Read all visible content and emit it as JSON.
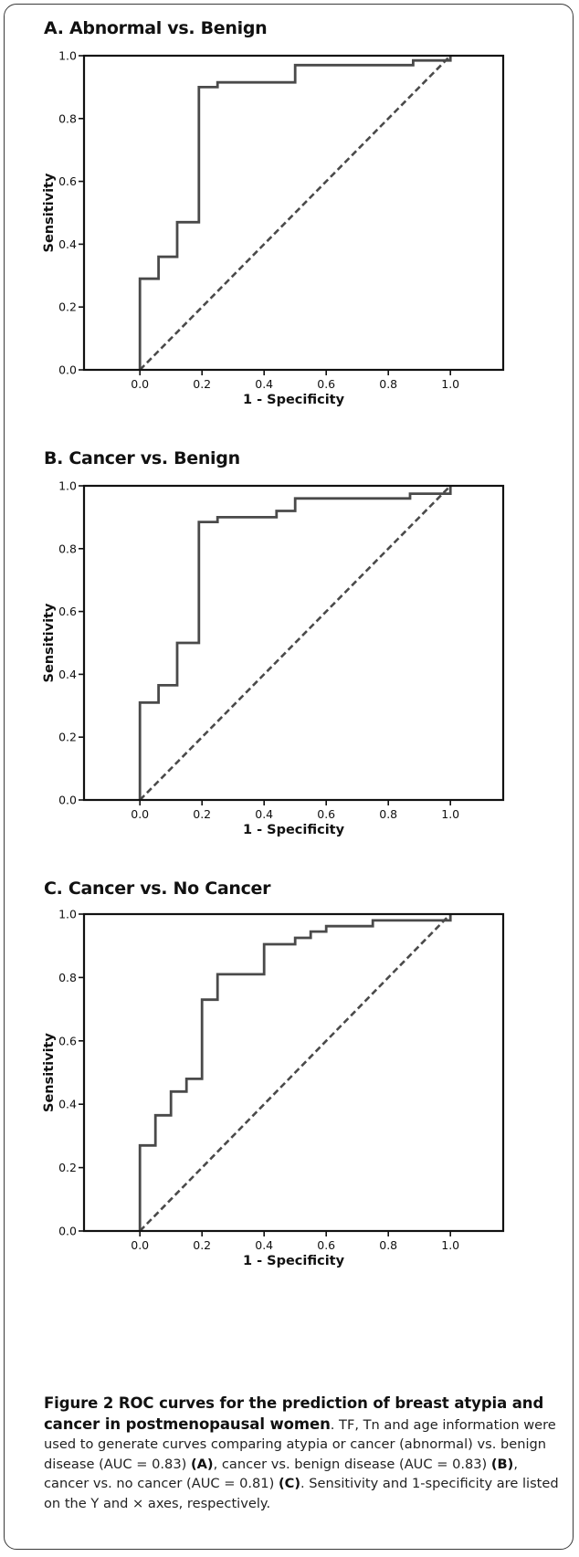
{
  "chart_data": [
    {
      "type": "line",
      "title": "A. Abnormal vs. Benign",
      "xlabel": "1 - Specificity",
      "ylabel": "Sensitivity",
      "xlim": [
        -0.18,
        1.17
      ],
      "ylim": [
        0,
        1
      ],
      "x_ticks": [
        "0.0",
        "0.2",
        "0.4",
        "0.6",
        "0.8",
        "1.0"
      ],
      "y_ticks": [
        "0.0",
        "0.2",
        "0.4",
        "0.6",
        "0.8",
        "1.0"
      ],
      "grid": false,
      "series": [
        {
          "style": "solid",
          "points": [
            [
              0,
              0
            ],
            [
              0,
              0.29
            ],
            [
              0.06,
              0.29
            ],
            [
              0.06,
              0.36
            ],
            [
              0.12,
              0.36
            ],
            [
              0.12,
              0.47
            ],
            [
              0.19,
              0.47
            ],
            [
              0.19,
              0.9
            ],
            [
              0.25,
              0.9
            ],
            [
              0.25,
              0.915
            ],
            [
              0.5,
              0.915
            ],
            [
              0.5,
              0.97
            ],
            [
              0.88,
              0.97
            ],
            [
              0.88,
              0.985
            ],
            [
              1.0,
              0.985
            ],
            [
              1.0,
              1.0
            ]
          ]
        },
        {
          "style": "dashed",
          "points": [
            [
              0,
              0
            ],
            [
              1,
              1
            ]
          ]
        }
      ]
    },
    {
      "type": "line",
      "title": "B. Cancer vs. Benign",
      "xlabel": "1 - Specificity",
      "ylabel": "Sensitivity",
      "xlim": [
        -0.18,
        1.17
      ],
      "ylim": [
        0,
        1
      ],
      "x_ticks": [
        "0.0",
        "0.2",
        "0.4",
        "0.6",
        "0.8",
        "1.0"
      ],
      "y_ticks": [
        "0.0",
        "0.2",
        "0.4",
        "0.6",
        "0.8",
        "1.0"
      ],
      "grid": false,
      "series": [
        {
          "style": "solid",
          "points": [
            [
              0,
              0
            ],
            [
              0,
              0.31
            ],
            [
              0.06,
              0.31
            ],
            [
              0.06,
              0.365
            ],
            [
              0.12,
              0.365
            ],
            [
              0.12,
              0.5
            ],
            [
              0.19,
              0.5
            ],
            [
              0.19,
              0.885
            ],
            [
              0.25,
              0.885
            ],
            [
              0.25,
              0.9
            ],
            [
              0.44,
              0.9
            ],
            [
              0.44,
              0.92
            ],
            [
              0.5,
              0.92
            ],
            [
              0.5,
              0.96
            ],
            [
              0.87,
              0.96
            ],
            [
              0.87,
              0.975
            ],
            [
              1.0,
              0.975
            ],
            [
              1.0,
              1.0
            ]
          ]
        },
        {
          "style": "dashed",
          "points": [
            [
              0,
              0
            ],
            [
              1,
              1
            ]
          ]
        }
      ]
    },
    {
      "type": "line",
      "title": "C. Cancer vs. No Cancer",
      "xlabel": "1 - Specificity",
      "ylabel": "Sensitivity",
      "xlim": [
        -0.18,
        1.17
      ],
      "ylim": [
        0,
        1
      ],
      "x_ticks": [
        "0.0",
        "0.2",
        "0.4",
        "0.6",
        "0.8",
        "1.0"
      ],
      "y_ticks": [
        "0.0",
        "0.2",
        "0.4",
        "0.6",
        "0.8",
        "1.0"
      ],
      "grid": false,
      "series": [
        {
          "style": "solid",
          "points": [
            [
              0,
              0
            ],
            [
              0,
              0.27
            ],
            [
              0.05,
              0.27
            ],
            [
              0.05,
              0.365
            ],
            [
              0.1,
              0.365
            ],
            [
              0.1,
              0.44
            ],
            [
              0.15,
              0.44
            ],
            [
              0.15,
              0.48
            ],
            [
              0.2,
              0.48
            ],
            [
              0.2,
              0.73
            ],
            [
              0.25,
              0.73
            ],
            [
              0.25,
              0.81
            ],
            [
              0.4,
              0.81
            ],
            [
              0.4,
              0.905
            ],
            [
              0.5,
              0.905
            ],
            [
              0.5,
              0.925
            ],
            [
              0.55,
              0.925
            ],
            [
              0.55,
              0.945
            ],
            [
              0.6,
              0.945
            ],
            [
              0.6,
              0.962
            ],
            [
              0.75,
              0.962
            ],
            [
              0.75,
              0.98
            ],
            [
              1.0,
              0.98
            ],
            [
              1.0,
              1.0
            ]
          ]
        },
        {
          "style": "dashed",
          "points": [
            [
              0,
              0
            ],
            [
              1,
              1
            ]
          ]
        }
      ]
    }
  ],
  "caption": {
    "title": "Figure 2 ROC curves for the prediction of breast atypia and cancer in postmenopausal women",
    "sep": ". ",
    "t1": "TF, Tn and age information were used to generate curves comparing atypia or cancer (abnormal) vs. benign disease (AUC = 0.83) ",
    "l1": "(A)",
    "t2": ", cancer vs. benign disease (AUC = 0.83) ",
    "l2": "(B)",
    "t3": ", cancer vs. no cancer (AUC = 0.81) ",
    "l3": "(C)",
    "t4": ". Sensitivity and 1-specificity are listed on the Y and × axes, respectively."
  },
  "colors": {
    "curve": "#4a4a4a",
    "axis": "#111111",
    "frame": "#3a3a3a"
  }
}
